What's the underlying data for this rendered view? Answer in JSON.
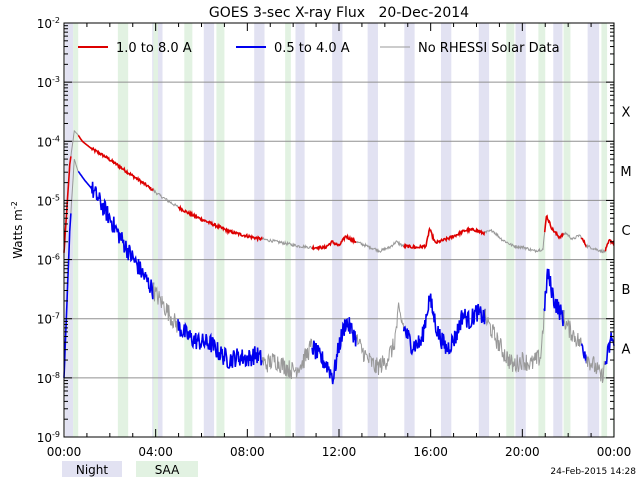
{
  "chart_data": {
    "type": "line",
    "title": "GOES 3-sec X-ray Flux   20-Dec-2014",
    "ylabel": "Watts m",
    "ylabel_sup": "-2",
    "y_scale": "log",
    "ylim": [
      1e-09,
      0.01
    ],
    "y_ticks": [
      {
        "value": 0.01,
        "base": "10",
        "exp": "-2"
      },
      {
        "value": 0.001,
        "base": "10",
        "exp": "-3"
      },
      {
        "value": 0.0001,
        "base": "10",
        "exp": "-4"
      },
      {
        "value": 1e-05,
        "base": "10",
        "exp": "-5"
      },
      {
        "value": 1e-06,
        "base": "10",
        "exp": "-6"
      },
      {
        "value": 1e-07,
        "base": "10",
        "exp": "-7"
      },
      {
        "value": 1e-08,
        "base": "10",
        "exp": "-8"
      },
      {
        "value": 1e-09,
        "base": "10",
        "exp": "-9"
      }
    ],
    "x_unit": "hours since 20-Dec-2014 00:00 UT",
    "xlim": [
      0,
      24
    ],
    "x_ticks": [
      {
        "value": 0,
        "label": "00:00"
      },
      {
        "value": 4,
        "label": "04:00"
      },
      {
        "value": 8,
        "label": "08:00"
      },
      {
        "value": 12,
        "label": "12:00"
      },
      {
        "value": 16,
        "label": "16:00"
      },
      {
        "value": 20,
        "label": "20:00"
      },
      {
        "value": 24,
        "label": "00:00"
      }
    ],
    "flare_classes": [
      {
        "label": "X",
        "value": 0.0001
      },
      {
        "label": "M",
        "value": 1e-05
      },
      {
        "label": "C",
        "value": 1e-06
      },
      {
        "label": "B",
        "value": 1e-07
      },
      {
        "label": "A",
        "value": 1e-08
      }
    ],
    "grid": true,
    "legend_position": "top",
    "series": [
      {
        "name": "1.0 to 8.0 A",
        "color": "#dd0000",
        "points": [
          [
            0,
            1.3e-06
          ],
          [
            0.25,
            4e-05
          ],
          [
            0.45,
            0.00015
          ],
          [
            0.6,
            0.00013
          ],
          [
            0.8,
            0.0001
          ],
          [
            1.2,
            7.5e-05
          ],
          [
            1.8,
            5.5e-05
          ],
          [
            2.4,
            3.8e-05
          ],
          [
            3.0,
            2.6e-05
          ],
          [
            3.6,
            1.8e-05
          ],
          [
            4.2,
            1.2e-05
          ],
          [
            4.8,
            8.5e-06
          ],
          [
            5.4,
            6.2e-06
          ],
          [
            6.0,
            4.8e-06
          ],
          [
            6.6,
            3.8e-06
          ],
          [
            7.2,
            3e-06
          ],
          [
            7.8,
            2.6e-06
          ],
          [
            8.4,
            2.3e-06
          ],
          [
            9.0,
            2.1e-06
          ],
          [
            9.6,
            1.9e-06
          ],
          [
            10.2,
            1.7e-06
          ],
          [
            10.8,
            1.6e-06
          ],
          [
            11.4,
            1.6e-06
          ],
          [
            11.7,
            2e-06
          ],
          [
            12.0,
            1.7e-06
          ],
          [
            12.3,
            2.5e-06
          ],
          [
            12.6,
            2.1e-06
          ],
          [
            13.2,
            1.7e-06
          ],
          [
            13.8,
            1.4e-06
          ],
          [
            14.2,
            1.6e-06
          ],
          [
            14.5,
            2e-06
          ],
          [
            14.8,
            1.7e-06
          ],
          [
            15.4,
            1.6e-06
          ],
          [
            15.8,
            1.7e-06
          ],
          [
            15.95,
            3.3e-06
          ],
          [
            16.2,
            1.9e-06
          ],
          [
            16.8,
            2.3e-06
          ],
          [
            17.2,
            2.7e-06
          ],
          [
            17.5,
            3.1e-06
          ],
          [
            17.9,
            3.2e-06
          ],
          [
            18.3,
            2.8e-06
          ],
          [
            18.7,
            3.1e-06
          ],
          [
            19.1,
            2.2e-06
          ],
          [
            19.6,
            1.7e-06
          ],
          [
            20.1,
            1.6e-06
          ],
          [
            20.5,
            1.4e-06
          ],
          [
            20.9,
            1.5e-06
          ],
          [
            21.05,
            5.6e-06
          ],
          [
            21.3,
            3.3e-06
          ],
          [
            21.6,
            2.4e-06
          ],
          [
            21.9,
            2.8e-06
          ],
          [
            22.2,
            2.2e-06
          ],
          [
            22.5,
            2.6e-06
          ],
          [
            22.8,
            1.7e-06
          ],
          [
            23.2,
            1.5e-06
          ],
          [
            23.6,
            1.35e-06
          ],
          [
            23.8,
            2.1e-06
          ],
          [
            24,
            1.9e-06
          ]
        ]
      },
      {
        "name": "0.5 to 4.0 A",
        "color": "#0000ee",
        "points": [
          [
            0,
            1e-08
          ],
          [
            0.25,
            3e-06
          ],
          [
            0.45,
            5e-05
          ],
          [
            0.6,
            3.2e-05
          ],
          [
            0.9,
            2.2e-05
          ],
          [
            1.2,
            1.6e-05
          ],
          [
            1.6,
            9e-06
          ],
          [
            2.0,
            5e-06
          ],
          [
            2.4,
            2.6e-06
          ],
          [
            2.8,
            1.4e-06
          ],
          [
            3.2,
            8e-07
          ],
          [
            3.6,
            4.5e-07
          ],
          [
            4.0,
            2.6e-07
          ],
          [
            4.4,
            1.6e-07
          ],
          [
            4.8,
            9e-08
          ],
          [
            5.2,
            6e-08
          ],
          [
            5.6,
            4.5e-08
          ],
          [
            6.0,
            4e-08
          ],
          [
            6.4,
            3.8e-08
          ],
          [
            6.8,
            2.6e-08
          ],
          [
            7.2,
            2e-08
          ],
          [
            7.6,
            2.3e-08
          ],
          [
            8.0,
            2.1e-08
          ],
          [
            8.4,
            2.5e-08
          ],
          [
            8.8,
            1.7e-08
          ],
          [
            9.2,
            2e-08
          ],
          [
            9.6,
            1.6e-08
          ],
          [
            10.0,
            1.3e-08
          ],
          [
            10.4,
            1.8e-08
          ],
          [
            10.8,
            3.5e-08
          ],
          [
            11.1,
            2.4e-08
          ],
          [
            11.5,
            1.6e-08
          ],
          [
            11.75,
            1e-08
          ],
          [
            12.0,
            3.5e-08
          ],
          [
            12.3,
            9e-08
          ],
          [
            12.6,
            6e-08
          ],
          [
            12.9,
            3.5e-08
          ],
          [
            13.2,
            2.2e-08
          ],
          [
            13.6,
            1.5e-08
          ],
          [
            14.0,
            1.8e-08
          ],
          [
            14.4,
            3.5e-08
          ],
          [
            14.6,
            1.3e-07
          ],
          [
            14.9,
            6e-08
          ],
          [
            15.2,
            3.5e-08
          ],
          [
            15.6,
            4e-08
          ],
          [
            15.95,
            2.3e-07
          ],
          [
            16.3,
            6e-08
          ],
          [
            16.7,
            3e-08
          ],
          [
            17.1,
            5e-08
          ],
          [
            17.4,
            1.2e-07
          ],
          [
            17.7,
            9e-08
          ],
          [
            18.0,
            1.3e-07
          ],
          [
            18.4,
            1e-07
          ],
          [
            18.8,
            5e-08
          ],
          [
            19.2,
            2.6e-08
          ],
          [
            19.6,
            1.6e-08
          ],
          [
            20.0,
            2e-08
          ],
          [
            20.4,
            1.7e-08
          ],
          [
            20.8,
            2.3e-08
          ],
          [
            21.1,
            6e-07
          ],
          [
            21.4,
            2e-07
          ],
          [
            21.7,
            1.2e-07
          ],
          [
            22.0,
            7e-08
          ],
          [
            22.3,
            5e-08
          ],
          [
            22.6,
            3.5e-08
          ],
          [
            22.9,
            2e-08
          ],
          [
            23.2,
            1.5e-08
          ],
          [
            23.45,
            1e-08
          ],
          [
            23.7,
            2.2e-08
          ],
          [
            23.9,
            5e-08
          ],
          [
            24,
            3.5e-08
          ]
        ]
      },
      {
        "name": "No RHESSI Solar Data",
        "color": "#999999",
        "points": []
      }
    ],
    "no_data_spans": [
      [
        0.28,
        0.6
      ],
      [
        3.9,
        4.95
      ],
      [
        8.65,
        10.8
      ],
      [
        12.75,
        14.8
      ],
      [
        18.35,
        20.95
      ],
      [
        21.8,
        22.55
      ],
      [
        22.8,
        23.6
      ]
    ],
    "night_bands": [
      [
        0.05,
        0.4
      ],
      [
        3.85,
        4.3
      ],
      [
        6.1,
        6.55
      ],
      [
        8.3,
        8.75
      ],
      [
        10.1,
        10.5
      ],
      [
        11.7,
        12.15
      ],
      [
        13.25,
        13.7
      ],
      [
        14.85,
        15.3
      ],
      [
        16.45,
        16.9
      ],
      [
        18.1,
        18.55
      ],
      [
        19.7,
        20.15
      ],
      [
        21.35,
        21.75
      ],
      [
        22.85,
        23.35
      ]
    ],
    "saa_bands": [
      [
        0.4,
        0.62
      ],
      [
        2.35,
        2.8
      ],
      [
        3.9,
        4.1
      ],
      [
        5.25,
        5.6
      ],
      [
        6.65,
        7.0
      ],
      [
        9.65,
        9.9
      ],
      [
        19.3,
        19.65
      ],
      [
        20.7,
        21.0
      ],
      [
        21.8,
        22.1
      ],
      [
        23.45,
        23.7
      ],
      [
        23.95,
        24.0
      ]
    ],
    "footer": {
      "night_label": "Night",
      "saa_label": "SAA",
      "timestamp": "24-Feb-2015 14:28"
    },
    "colors": {
      "night": "#e2e2f2",
      "saa": "#e2f2e2",
      "grid": "#909090",
      "frame": "#000000"
    }
  }
}
